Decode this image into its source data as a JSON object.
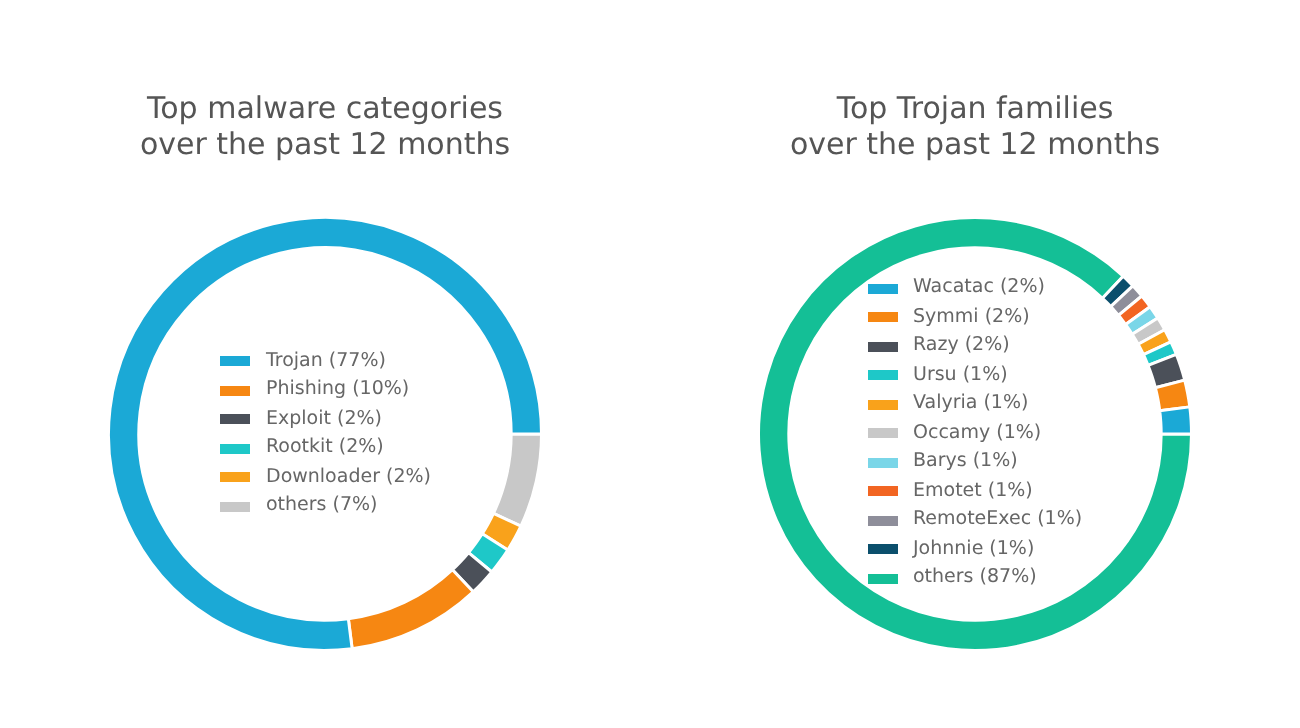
{
  "chart_data": [
    {
      "type": "donut",
      "title": "Top malware categories\nover the past 12 months",
      "legend": "center",
      "categories": [
        "Trojan (77%)",
        "Phishing (10%)",
        "Exploit (2%)",
        "Rootkit (2%)",
        "Downloader (2%)",
        "others (7%)"
      ],
      "values": [
        77,
        10,
        2,
        2,
        2,
        7
      ],
      "colors": [
        "#1ba9d6",
        "#f68712",
        "#4b5059",
        "#1ec8c8",
        "#f9a21b",
        "#c8c8c8"
      ]
    },
    {
      "type": "donut",
      "title": "Top Trojan families\nover the past 12 months",
      "legend": "center",
      "categories": [
        "Wacatac (2%)",
        "Symmi (2%)",
        "Razy (2%)",
        "Ursu (1%)",
        "Valyria (1%)",
        "Occamy (1%)",
        "Barys (1%)",
        "Emotet (1%)",
        "RemoteExec (1%)",
        "Johnnie (1%)",
        "others (87%)"
      ],
      "values": [
        2,
        2,
        2,
        1,
        1,
        1,
        1,
        1,
        1,
        1,
        87
      ],
      "colors": [
        "#1ba9d6",
        "#f68712",
        "#4b5059",
        "#1ec8c8",
        "#f9a21b",
        "#c8c8c8",
        "#7ad6e8",
        "#f26522",
        "#8e8e9a",
        "#0b4f6c",
        "#14bf96"
      ]
    }
  ]
}
